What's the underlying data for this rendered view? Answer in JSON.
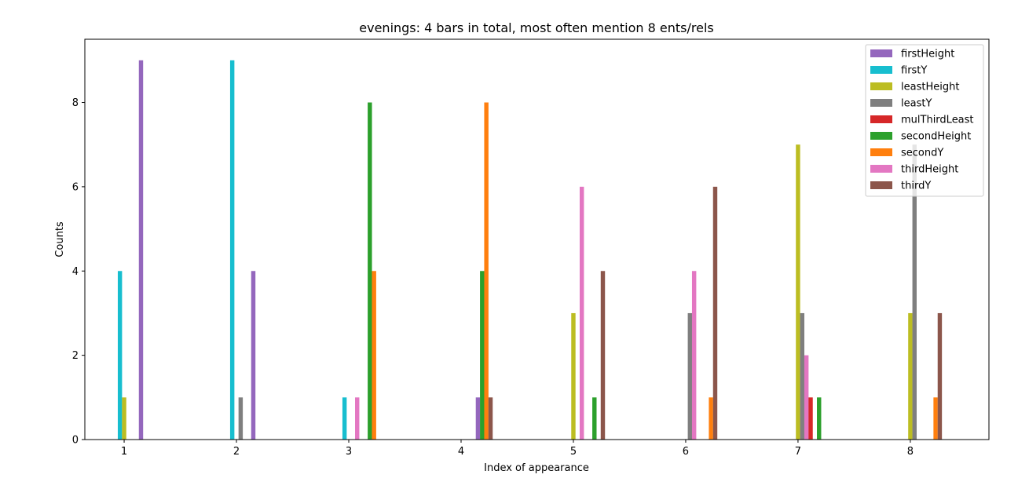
{
  "chart_data": {
    "type": "bar",
    "title": "evenings: 4 bars in total, most often mention  8 ents/rels",
    "xlabel": "Index of appearance",
    "ylabel": "Counts",
    "categories": [
      "1",
      "2",
      "3",
      "4",
      "5",
      "6",
      "7",
      "8"
    ],
    "xlim": [
      0.65,
      8.7
    ],
    "ylim": [
      0,
      9.5
    ],
    "yticks": [
      0,
      2,
      4,
      6,
      8
    ],
    "legend_position": "top-right",
    "series": [
      {
        "name": "firstHeight",
        "color": "#9467bd",
        "values": [
          9,
          4,
          0,
          1,
          0,
          0,
          0,
          0
        ]
      },
      {
        "name": "firstY",
        "color": "#17becf",
        "values": [
          4,
          9,
          1,
          0,
          0,
          0,
          0,
          0
        ]
      },
      {
        "name": "leastHeight",
        "color": "#bcbd22",
        "values": [
          1,
          0,
          0,
          0,
          3,
          0,
          7,
          3
        ]
      },
      {
        "name": "leastY",
        "color": "#7f7f7f",
        "values": [
          0,
          1,
          0,
          0,
          0,
          3,
          3,
          7
        ]
      },
      {
        "name": "mulThirdLeast",
        "color": "#d62728",
        "values": [
          0,
          0,
          0,
          0,
          0,
          0,
          1,
          0
        ]
      },
      {
        "name": "secondHeight",
        "color": "#2ca02c",
        "values": [
          0,
          0,
          8,
          4,
          1,
          0,
          1,
          0
        ]
      },
      {
        "name": "secondY",
        "color": "#ff7f0e",
        "values": [
          0,
          0,
          4,
          8,
          0,
          1,
          0,
          1
        ]
      },
      {
        "name": "thirdHeight",
        "color": "#e377c2",
        "values": [
          0,
          0,
          1,
          0,
          6,
          4,
          2,
          0
        ]
      },
      {
        "name": "thirdY",
        "color": "#8c564b",
        "values": [
          0,
          0,
          0,
          1,
          4,
          6,
          0,
          3
        ]
      }
    ],
    "bar_order": [
      "firstY",
      "leastHeight",
      "leastY",
      "thirdHeight",
      "mulThirdLeast",
      "firstHeight",
      "secondHeight",
      "secondY",
      "thirdY"
    ]
  }
}
